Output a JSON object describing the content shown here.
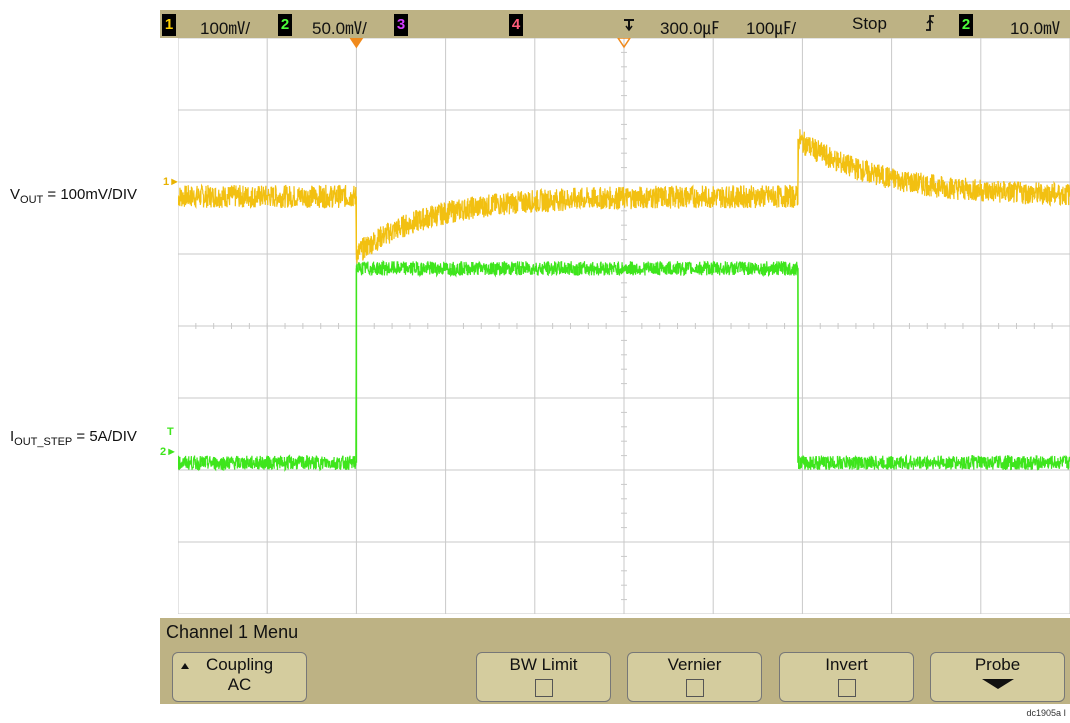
{
  "top_bar": {
    "ch1_number": "1",
    "ch1_scale": "100㎷/",
    "ch2_number": "2",
    "ch2_scale": "50.0㎷/",
    "ch3_number": "3",
    "ch4_number": "4",
    "time_delay": "300.0㎌",
    "time_scale": "100㎌/",
    "run_state": "Stop",
    "trigger_slope_icon": "rising-edge-icon",
    "trigger_source": "2",
    "trigger_level": "10.0㎷"
  },
  "labels": {
    "vout_main": "V",
    "vout_sub": "OUT",
    "vout_rest": " = 100mV/DIV",
    "iout_main": "I",
    "iout_sub": "OUT_STEP",
    "iout_rest": " = 5A/DIV",
    "ch1_marker": "1",
    "ch2_marker": "2",
    "trig_marker": "T"
  },
  "menu": {
    "title": "Channel 1  Menu",
    "softkeys": [
      {
        "label": "Coupling",
        "value": "AC"
      },
      {
        "label": "BW Limit",
        "value": ""
      },
      {
        "label": "Vernier",
        "value": ""
      },
      {
        "label": "Invert",
        "value": ""
      },
      {
        "label": "Probe",
        "value": ""
      }
    ]
  },
  "figure_id": "dc1905a I",
  "colors": {
    "ch1_trace": "#f2c011",
    "ch2_trace": "#3ee51c",
    "grid": "#c9c9c9",
    "bezel": "#bdb284"
  },
  "trace_levels": {
    "ch1_baseline_div": 1.8,
    "ch1_dip_div": 1.0,
    "ch1_overshoot_div": 2.6,
    "ch2_low_div": -1.9,
    "ch2_high_div": 0.8
  }
}
